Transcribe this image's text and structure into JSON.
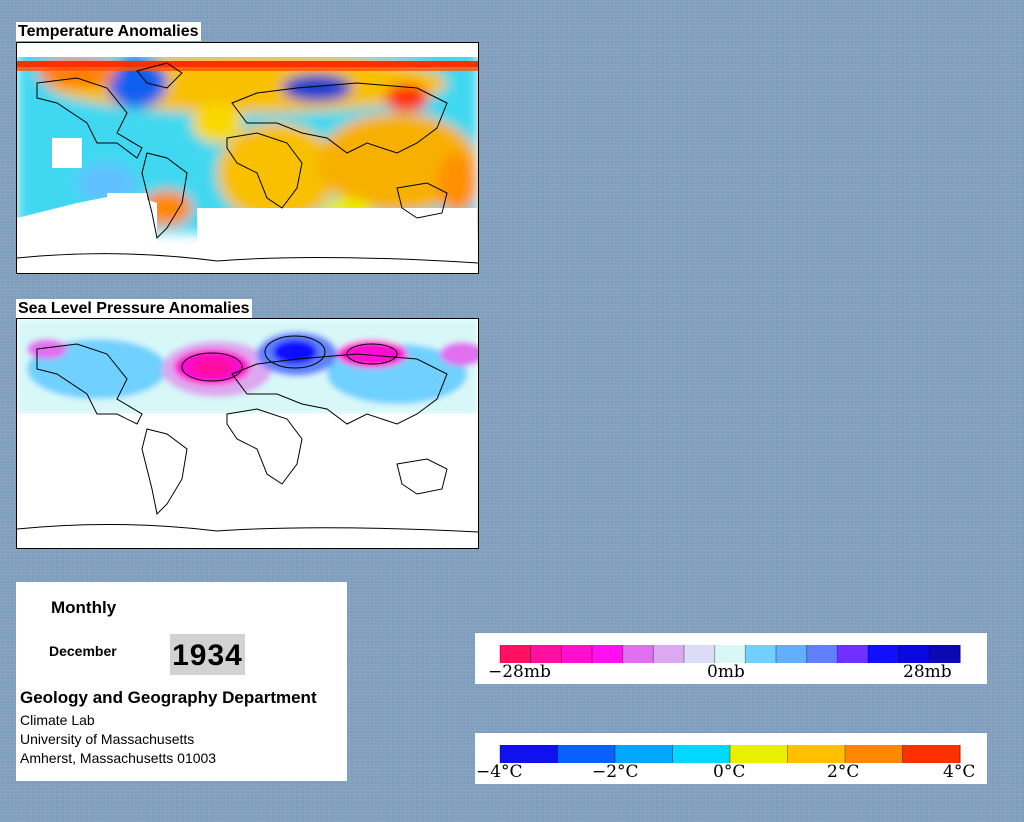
{
  "temperature_map": {
    "title": "Temperature Anomalies"
  },
  "pressure_map": {
    "title": "Sea Level Pressure Anomalies"
  },
  "info": {
    "period": "Monthly",
    "month": "December",
    "year": "1934",
    "department": "Geology and Geography Department",
    "lab": "Climate Lab",
    "university": "University of Massachusetts",
    "address": "Amherst, Massachusetts 01003"
  },
  "pressure_legend": {
    "labels": [
      "−28mb",
      "0mb",
      "28mb"
    ],
    "colors": [
      "#ff1060",
      "#ff10a0",
      "#ff10d0",
      "#ff10f0",
      "#e070f0",
      "#dca8f0",
      "#dcdcf8",
      "#d8f8f8",
      "#70d0ff",
      "#60b0ff",
      "#6080ff",
      "#7030ff",
      "#1010ff",
      "#0a0ae0",
      "#0a0ab0"
    ]
  },
  "temperature_legend": {
    "labels": [
      "−4°C",
      "−2°C",
      "0°C",
      "2°C",
      "4°C"
    ],
    "colors": [
      "#1010f0",
      "#0a60ff",
      "#00a8ff",
      "#00d8ff",
      "#e8f000",
      "#ffc000",
      "#ff8800",
      "#ff3000"
    ]
  }
}
